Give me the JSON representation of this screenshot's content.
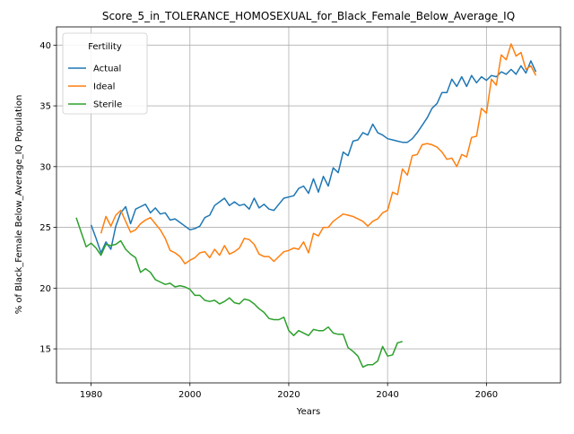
{
  "chart_data": {
    "type": "line",
    "title": "Score_5_in_TOLERANCE_HOMOSEXUAL_for_Black_Female_Below_Average_IQ",
    "xlabel": "Years",
    "ylabel": "% of Black_Female Below_Average_IQ Population",
    "xlim": [
      1973,
      2075
    ],
    "ylim": [
      12.2,
      41.5
    ],
    "x_ticks": [
      1980,
      2000,
      2020,
      2040,
      2060
    ],
    "y_ticks": [
      15,
      20,
      25,
      30,
      35,
      40
    ],
    "grid": true,
    "legend": {
      "title": "Fertility",
      "placement": "upper-left"
    },
    "series": [
      {
        "name": "Actual",
        "color": "#1f77b4",
        "x": [
          1980,
          1981,
          1982,
          1983,
          1984,
          1985,
          1986,
          1987,
          1988,
          1989,
          1990,
          1991,
          1992,
          1993,
          1994,
          1995,
          1996,
          1997,
          1998,
          1999,
          2000,
          2001,
          2002,
          2003,
          2004,
          2005,
          2006,
          2007,
          2008,
          2009,
          2010,
          2011,
          2012,
          2013,
          2014,
          2015,
          2016,
          2017,
          2018,
          2019,
          2020,
          2021,
          2022,
          2023,
          2024,
          2025,
          2026,
          2027,
          2028,
          2029,
          2030,
          2031,
          2032,
          2033,
          2034,
          2035,
          2036,
          2037,
          2038,
          2039,
          2040,
          2041,
          2042,
          2043,
          2044,
          2045,
          2046,
          2047,
          2048,
          2049,
          2050,
          2051,
          2052,
          2053,
          2054,
          2055,
          2056,
          2057,
          2058,
          2059,
          2060,
          2061,
          2062,
          2063,
          2064,
          2065,
          2066,
          2067,
          2068,
          2069,
          2070
        ],
        "y": [
          25.2,
          24.1,
          22.9,
          23.8,
          23.2,
          25.1,
          26.2,
          26.7,
          25.3,
          26.5,
          26.7,
          26.9,
          26.2,
          26.6,
          26.1,
          26.2,
          25.6,
          25.7,
          25.4,
          25.1,
          24.8,
          24.9,
          25.1,
          25.8,
          26.0,
          26.8,
          27.1,
          27.4,
          26.8,
          27.1,
          26.8,
          26.9,
          26.5,
          27.4,
          26.6,
          26.9,
          26.5,
          26.4,
          26.9,
          27.4,
          27.5,
          27.6,
          28.2,
          28.4,
          27.8,
          29.0,
          27.9,
          29.2,
          28.4,
          29.9,
          29.5,
          31.2,
          30.9,
          32.1,
          32.2,
          32.8,
          32.6,
          33.5,
          32.8,
          32.6,
          32.3,
          32.2,
          32.1,
          32.0,
          32.0,
          32.3,
          32.8,
          33.4,
          34.0,
          34.8,
          35.2,
          36.1,
          36.1,
          37.2,
          36.6,
          37.4,
          36.6,
          37.5,
          36.9,
          37.4,
          37.1,
          37.5,
          37.4,
          37.8,
          37.6,
          38.0,
          37.6,
          38.3,
          37.7,
          38.7,
          37.8
        ]
      },
      {
        "name": "Ideal",
        "color": "#ff7f0e",
        "x": [
          1982,
          1983,
          1984,
          1985,
          1986,
          1987,
          1988,
          1989,
          1990,
          1991,
          1992,
          1993,
          1994,
          1995,
          1996,
          1997,
          1998,
          1999,
          2000,
          2001,
          2002,
          2003,
          2004,
          2005,
          2006,
          2007,
          2008,
          2009,
          2010,
          2011,
          2012,
          2013,
          2014,
          2015,
          2016,
          2017,
          2018,
          2019,
          2020,
          2021,
          2022,
          2023,
          2024,
          2025,
          2026,
          2027,
          2028,
          2029,
          2030,
          2031,
          2032,
          2033,
          2034,
          2035,
          2036,
          2037,
          2038,
          2039,
          2040,
          2041,
          2042,
          2043,
          2044,
          2045,
          2046,
          2047,
          2048,
          2049,
          2050,
          2051,
          2052,
          2053,
          2054,
          2055,
          2056,
          2057,
          2058,
          2059,
          2060,
          2061,
          2062,
          2063,
          2064,
          2065,
          2066,
          2067,
          2068,
          2069,
          2070
        ],
        "y": [
          24.5,
          25.9,
          25.1,
          26.0,
          26.4,
          25.5,
          24.6,
          24.8,
          25.3,
          25.6,
          25.8,
          25.3,
          24.8,
          24.1,
          23.1,
          22.9,
          22.6,
          22.0,
          22.3,
          22.5,
          22.9,
          23.0,
          22.5,
          23.2,
          22.7,
          23.5,
          22.8,
          23.0,
          23.3,
          24.1,
          24.0,
          23.6,
          22.8,
          22.6,
          22.6,
          22.2,
          22.6,
          23.0,
          23.1,
          23.3,
          23.2,
          23.8,
          22.9,
          24.5,
          24.3,
          25.0,
          25.0,
          25.5,
          25.8,
          26.1,
          26.0,
          25.9,
          25.7,
          25.5,
          25.1,
          25.5,
          25.7,
          26.2,
          26.4,
          27.9,
          27.7,
          29.8,
          29.3,
          30.9,
          31.0,
          31.8,
          31.9,
          31.8,
          31.6,
          31.2,
          30.6,
          30.7,
          30.0,
          31.0,
          30.8,
          32.4,
          32.5,
          34.8,
          34.4,
          37.2,
          36.7,
          39.2,
          38.8,
          40.1,
          39.1,
          39.4,
          38.0,
          38.3,
          37.5
        ]
      },
      {
        "name": "Sterile",
        "color": "#2ca02c",
        "x": [
          1977,
          1978,
          1979,
          1980,
          1981,
          1982,
          1983,
          1984,
          1985,
          1986,
          1987,
          1988,
          1989,
          1990,
          1991,
          1992,
          1993,
          1994,
          1995,
          1996,
          1997,
          1998,
          1999,
          2000,
          2001,
          2002,
          2003,
          2004,
          2005,
          2006,
          2007,
          2008,
          2009,
          2010,
          2011,
          2012,
          2013,
          2014,
          2015,
          2016,
          2017,
          2018,
          2019,
          2020,
          2021,
          2022,
          2023,
          2024,
          2025,
          2026,
          2027,
          2028,
          2029,
          2030,
          2031,
          2032,
          2033,
          2034,
          2035,
          2036,
          2037,
          2038,
          2039,
          2040,
          2041,
          2042,
          2043
        ],
        "y": [
          25.8,
          24.6,
          23.4,
          23.7,
          23.3,
          22.7,
          23.6,
          23.5,
          23.6,
          23.9,
          23.2,
          22.8,
          22.5,
          21.3,
          21.6,
          21.3,
          20.7,
          20.5,
          20.3,
          20.4,
          20.1,
          20.2,
          20.1,
          19.9,
          19.4,
          19.4,
          19.0,
          18.9,
          19.0,
          18.7,
          18.9,
          19.2,
          18.8,
          18.7,
          19.1,
          19.0,
          18.7,
          18.3,
          18.0,
          17.5,
          17.4,
          17.4,
          17.6,
          16.5,
          16.1,
          16.5,
          16.3,
          16.1,
          16.6,
          16.5,
          16.5,
          16.8,
          16.3,
          16.2,
          16.2,
          15.1,
          14.8,
          14.4,
          13.5,
          13.7,
          13.7,
          14.0,
          15.2,
          14.4,
          14.5,
          15.5,
          15.6
        ]
      }
    ]
  }
}
